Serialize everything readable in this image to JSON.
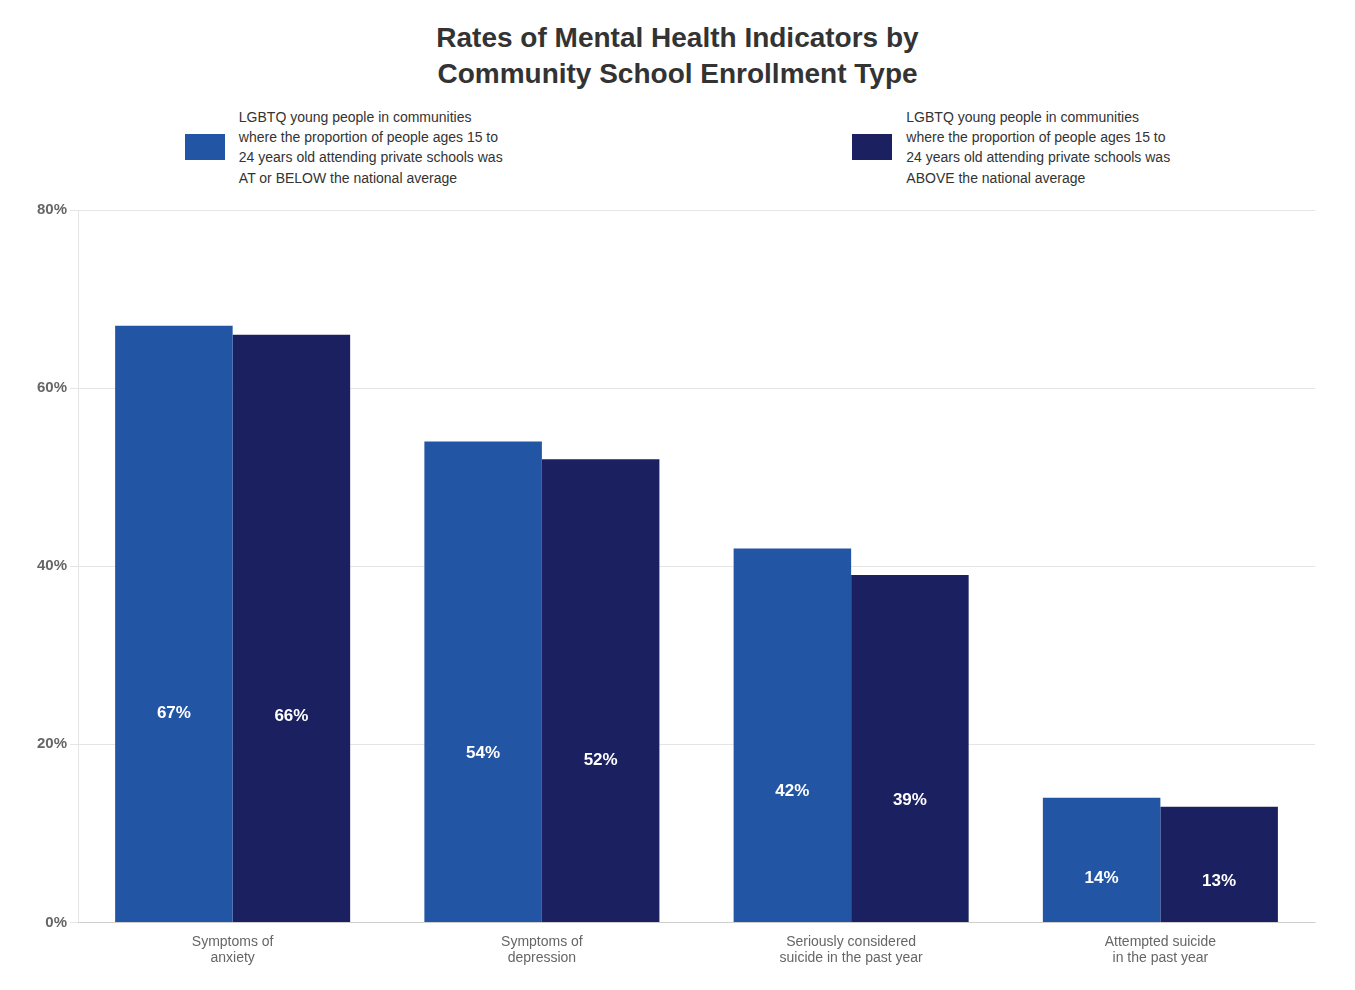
{
  "chart_data": {
    "type": "bar",
    "title": "Rates of Mental Health Indicators by\nCommunity School Enrollment Type",
    "categories": [
      "Symptoms of\nanxiety",
      "Symptoms of\ndepression",
      "Seriously considered\nsuicide in the past year",
      "Attempted suicide\nin the past year"
    ],
    "series": [
      {
        "name": "LGBTQ young people in communities\nwhere the proportion of people ages 15 to\n24 years old attending private schools was\nAT or BELOW the national average",
        "color": "#2255a4",
        "values": [
          67,
          54,
          42,
          14
        ],
        "value_labels": [
          "67%",
          "54%",
          "42%",
          "14%"
        ]
      },
      {
        "name": "LGBTQ young people in communities\nwhere the proportion of people ages 15 to\n24 years old attending private schools was\nABOVE the national average",
        "color": "#1a2060",
        "values": [
          66,
          52,
          39,
          13
        ],
        "value_labels": [
          "66%",
          "52%",
          "39%",
          "13%"
        ]
      }
    ],
    "ylim": [
      0,
      80
    ],
    "yticks": [
      {
        "value": 0,
        "label": "0%"
      },
      {
        "value": 20,
        "label": "20%"
      },
      {
        "value": 40,
        "label": "40%"
      },
      {
        "value": 60,
        "label": "60%"
      },
      {
        "value": 80,
        "label": "80%"
      }
    ],
    "grid": true,
    "legend": "top",
    "data_labels": true
  }
}
